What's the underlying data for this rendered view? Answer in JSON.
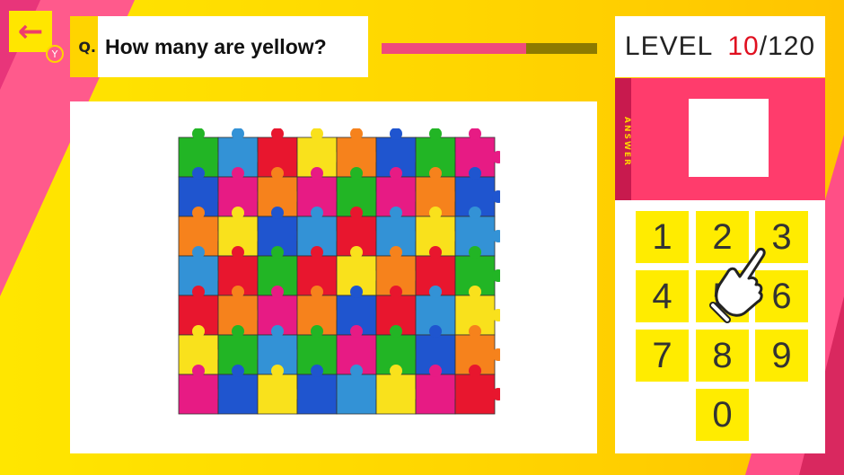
{
  "header": {
    "back_icon": "arrow-left-icon",
    "back_shortcut": "Y",
    "question_prefix": "Q.",
    "question": "How many are yellow?",
    "progress_percent": 67
  },
  "level": {
    "label": "LEVEL",
    "current": "10",
    "total": "/120"
  },
  "answer": {
    "label": "ANSWER",
    "value": ""
  },
  "keypad": {
    "keys": [
      "1",
      "2",
      "3",
      "4",
      "5",
      "6",
      "7",
      "8",
      "9",
      "0"
    ]
  },
  "colors": {
    "accent_pink": "#ff3c6c",
    "key_yellow": "#ffec00",
    "level_red": "#e01020"
  },
  "puzzle": {
    "palette": {
      "G": "#22b525",
      "LB": "#3392d6",
      "R": "#e8162e",
      "Y": "#f9e11c",
      "O": "#f6821c",
      "B": "#1f55cf",
      "P": "#e71b84"
    },
    "rows": [
      [
        "G",
        "LB",
        "R",
        "Y",
        "O",
        "B",
        "G",
        "P"
      ],
      [
        "B",
        "P",
        "O",
        "P",
        "G",
        "P",
        "O",
        "B"
      ],
      [
        "O",
        "Y",
        "B",
        "LB",
        "R",
        "LB",
        "Y",
        "LB"
      ],
      [
        "LB",
        "R",
        "G",
        "R",
        "Y",
        "O",
        "R",
        "G"
      ],
      [
        "R",
        "O",
        "P",
        "O",
        "B",
        "R",
        "LB",
        "Y"
      ],
      [
        "Y",
        "G",
        "LB",
        "G",
        "P",
        "G",
        "B",
        "O"
      ],
      [
        "P",
        "B",
        "Y",
        "B",
        "LB",
        "Y",
        "P",
        "R"
      ]
    ]
  }
}
